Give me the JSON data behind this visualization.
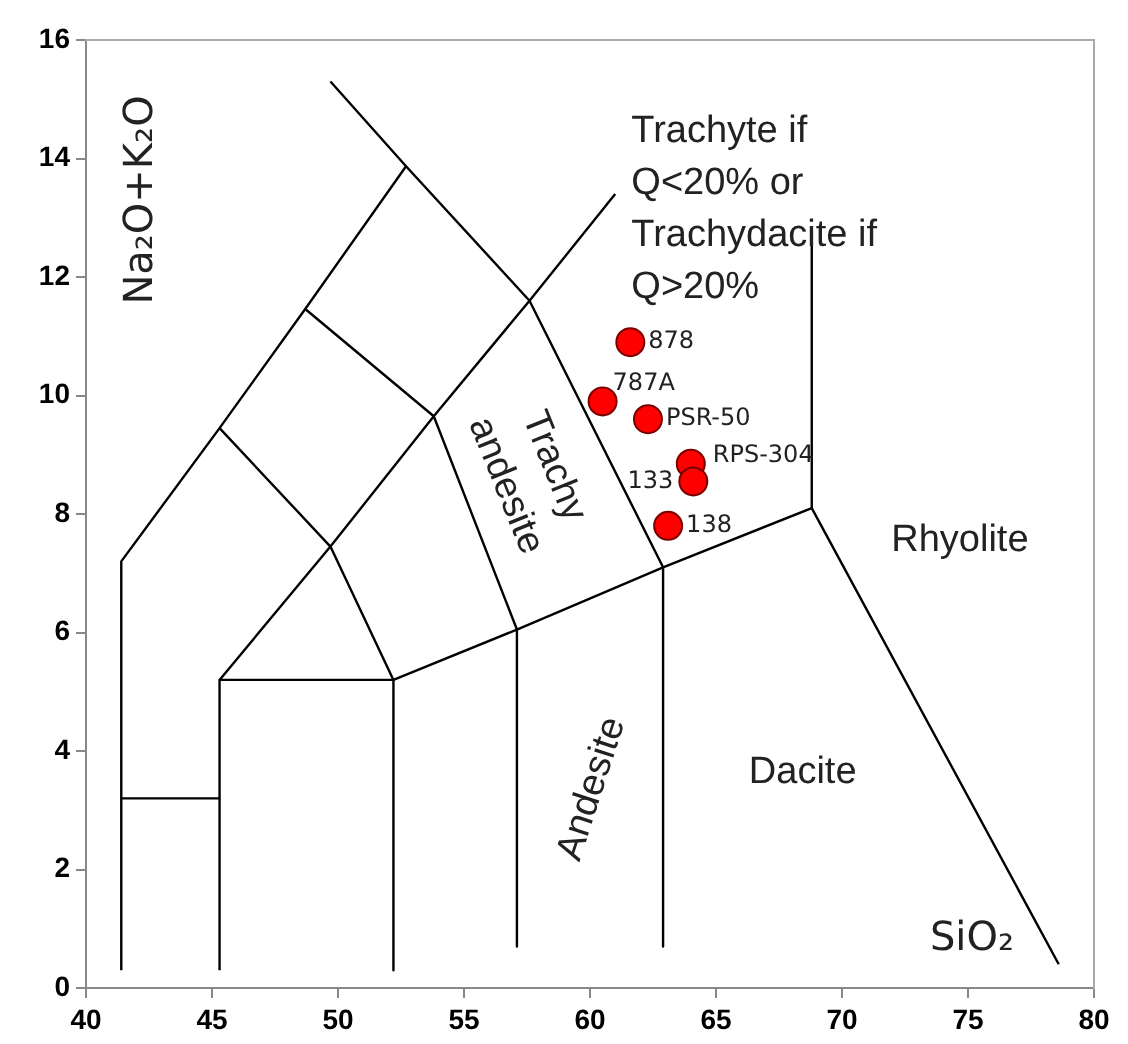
{
  "chart_data": {
    "type": "scatter",
    "xlabel": "SiO₂",
    "ylabel": "Na₂O+K₂O",
    "xlim": [
      40,
      80
    ],
    "xticks": [
      40,
      45,
      50,
      55,
      60,
      65,
      70,
      75,
      80
    ],
    "ylim": [
      0,
      16
    ],
    "yticks": [
      0,
      2,
      4,
      6,
      8,
      10,
      12,
      14,
      16
    ],
    "grid": false,
    "legend": false,
    "marker": "circle",
    "series": [
      {
        "color": "#ff0000",
        "x": [
          61.6,
          60.5,
          62.3,
          64.0,
          64.1,
          63.1
        ],
        "values": [
          10.9,
          9.9,
          9.6,
          8.85,
          8.55,
          7.8
        ]
      },
      {
        "type": "line",
        "color": "#000000",
        "marker": "none",
        "x": [
          41.4,
          41.4,
          45.3,
          48.7,
          52.7
        ],
        "values": [
          0.3,
          7.2,
          9.45,
          11.46,
          13.87
        ]
      },
      {
        "type": "line",
        "color": "#000000",
        "marker": "none",
        "x": [
          41.4,
          45.3
        ],
        "values": [
          3.2,
          3.2
        ]
      },
      {
        "type": "line",
        "color": "#000000",
        "marker": "none",
        "x": [
          45.3,
          45.3,
          52.2,
          52.2
        ],
        "values": [
          0.3,
          5.2,
          5.2,
          0.3
        ]
      },
      {
        "type": "line",
        "color": "#000000",
        "marker": "none",
        "x": [
          45.3,
          49.7,
          53.8,
          57.6,
          61.0
        ],
        "values": [
          5.2,
          7.45,
          9.65,
          11.6,
          13.4
        ]
      },
      {
        "type": "line",
        "color": "#000000",
        "marker": "none",
        "x": [
          45.3,
          49.7,
          52.2
        ],
        "values": [
          9.45,
          7.45,
          5.2
        ]
      },
      {
        "type": "line",
        "color": "#000000",
        "marker": "none",
        "x": [
          48.7,
          53.8,
          57.1,
          57.1
        ],
        "values": [
          11.46,
          9.65,
          6.05,
          0.7
        ]
      },
      {
        "type": "line",
        "color": "#000000",
        "marker": "none",
        "x": [
          49.7,
          52.7,
          57.6,
          62.9,
          62.9
        ],
        "values": [
          15.3,
          13.87,
          11.6,
          7.1,
          0.7
        ]
      },
      {
        "type": "line",
        "color": "#000000",
        "marker": "none",
        "x": [
          52.2,
          57.1,
          62.9,
          68.8,
          78.6
        ],
        "values": [
          5.2,
          6.05,
          7.1,
          8.1,
          0.4
        ]
      },
      {
        "type": "line",
        "color": "#000000",
        "marker": "none",
        "x": [
          68.8,
          68.8
        ],
        "values": [
          8.1,
          12.7
        ]
      }
    ],
    "annotations": [
      "Trachyte if\nQ<20% or\nTrachydacite if\nQ>20%",
      "Trachy\nandesite",
      "Rhyolite",
      "Dacite",
      "Andesite",
      {
        "text": "878",
        "x": 61.6,
        "y": 10.9
      },
      {
        "text": "787A",
        "x": 60.5,
        "y": 9.9
      },
      {
        "text": "PSR-50",
        "x": 62.3,
        "y": 9.6
      },
      {
        "text": "RPS-304",
        "x": 64.0,
        "y": 8.85
      },
      {
        "text": "133",
        "x": 64.1,
        "y": 8.55
      },
      {
        "text": "138",
        "x": 63.1,
        "y": 7.8
      }
    ]
  }
}
